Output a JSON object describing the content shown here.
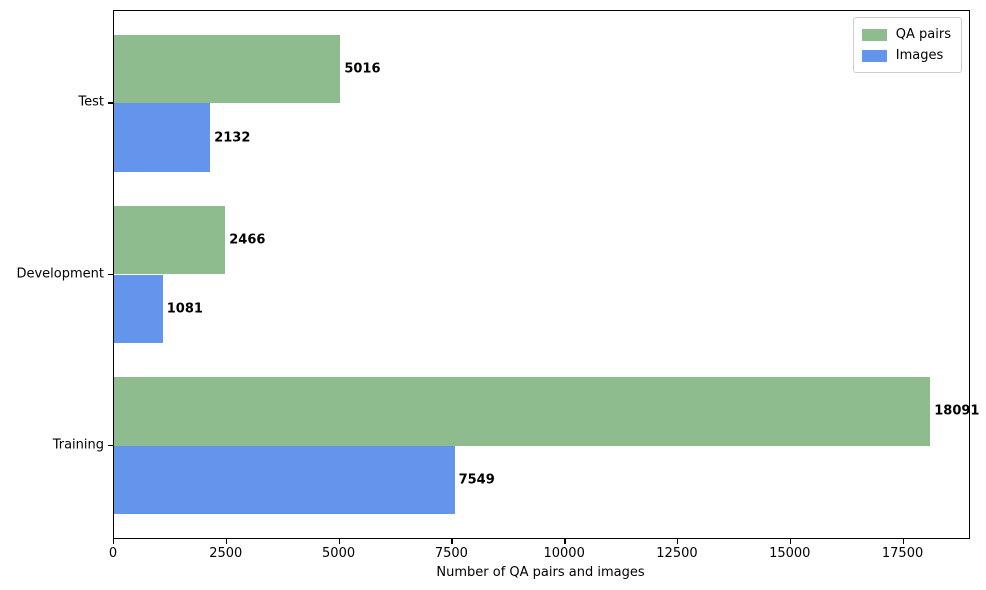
{
  "chart_data": {
    "type": "bar",
    "orientation": "horizontal",
    "title": "",
    "xlabel": "Number of QA pairs and images",
    "ylabel": "",
    "categories": [
      "Test",
      "Development",
      "Training"
    ],
    "series": [
      {
        "name": "QA pairs",
        "color": "#8fbc8f",
        "values": [
          5016,
          2466,
          18091
        ]
      },
      {
        "name": "Images",
        "color": "#6495ed",
        "values": [
          2132,
          1081,
          7549
        ]
      }
    ],
    "bar_value_labels": [
      [
        "5016",
        "2466",
        "18091"
      ],
      [
        "2132",
        "1081",
        "7549"
      ]
    ],
    "xlim": [
      0,
      18950
    ],
    "xticks": [
      0,
      2500,
      5000,
      7500,
      10000,
      12500,
      15000,
      17500
    ],
    "xtick_labels": [
      "0",
      "2500",
      "5000",
      "7500",
      "10000",
      "12500",
      "15000",
      "17500"
    ],
    "grid": false,
    "legend_position": "upper right",
    "background_color": "#ffffff",
    "text_color": "#000000"
  }
}
